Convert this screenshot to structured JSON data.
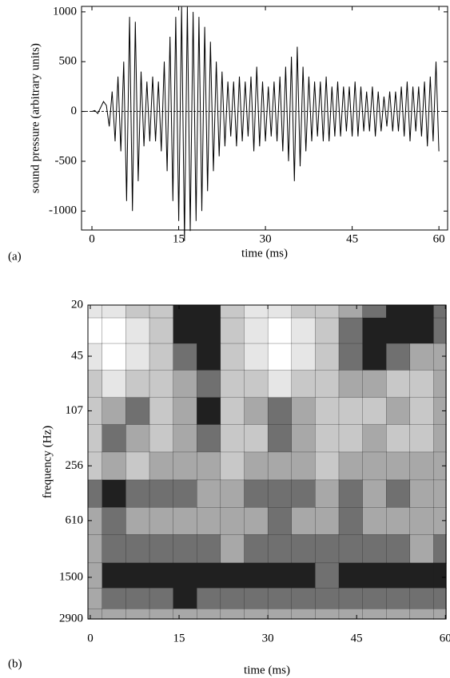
{
  "chart_data": [
    {
      "type": "line",
      "panel_label": "(a)",
      "xlabel": "time (ms)",
      "ylabel": "sound pressure (arbitrary units)",
      "color": "#000000",
      "zero_line": true,
      "xlim": [
        -1.8,
        61.5
      ],
      "xticks": [
        0,
        15,
        30,
        45,
        60
      ],
      "ylim": [
        -1190,
        1055
      ],
      "yticks": [
        -1000,
        -500,
        0,
        500,
        1000
      ],
      "x": [
        0,
        0.5,
        1,
        1.5,
        2,
        2.5,
        3,
        3.5,
        4,
        4.5,
        5,
        5.5,
        6,
        6.5,
        7,
        7.5,
        8,
        8.5,
        9,
        9.5,
        10,
        10.5,
        11,
        11.5,
        12,
        12.5,
        13,
        13.5,
        14,
        14.5,
        15,
        15.5,
        16,
        16.5,
        17,
        17.5,
        18,
        18.5,
        19,
        19.5,
        20,
        20.5,
        21,
        21.5,
        22,
        22.5,
        23,
        23.5,
        24,
        24.5,
        25,
        25.5,
        26,
        26.5,
        27,
        27.5,
        28,
        28.5,
        29,
        29.5,
        30,
        30.5,
        31,
        31.5,
        32,
        32.5,
        33,
        33.5,
        34,
        34.5,
        35,
        35.5,
        36,
        36.5,
        37,
        37.5,
        38,
        38.5,
        39,
        39.5,
        40,
        40.5,
        41,
        41.5,
        42,
        42.5,
        43,
        43.5,
        44,
        44.5,
        45,
        45.5,
        46,
        46.5,
        47,
        47.5,
        48,
        48.5,
        49,
        49.5,
        50,
        50.5,
        51,
        51.5,
        52,
        52.5,
        53,
        53.5,
        54,
        54.5,
        55,
        55.5,
        56,
        56.5,
        57,
        57.5,
        58,
        58.5,
        59,
        59.5,
        60
      ],
      "values": [
        0,
        10,
        -20,
        40,
        100,
        60,
        -150,
        200,
        -300,
        350,
        -400,
        500,
        -900,
        950,
        -1000,
        900,
        -700,
        400,
        -350,
        300,
        -300,
        350,
        -300,
        300,
        -400,
        500,
        -600,
        750,
        -900,
        950,
        -1100,
        1050,
        -1300,
        1050,
        -1200,
        1000,
        -1100,
        950,
        -1000,
        850,
        -800,
        700,
        -600,
        500,
        -450,
        400,
        -350,
        300,
        -250,
        300,
        -350,
        350,
        -300,
        300,
        -250,
        350,
        -400,
        450,
        -350,
        300,
        -300,
        250,
        -250,
        300,
        -300,
        350,
        -400,
        450,
        -500,
        550,
        -700,
        650,
        -550,
        450,
        -400,
        350,
        -300,
        300,
        -250,
        300,
        -300,
        350,
        -300,
        250,
        -250,
        300,
        -250,
        250,
        -200,
        250,
        -250,
        300,
        -250,
        250,
        -200,
        200,
        -200,
        250,
        -250,
        200,
        -200,
        150,
        -150,
        200,
        -200,
        200,
        -200,
        250,
        -250,
        300,
        -300,
        250,
        -200,
        250,
        -250,
        300,
        -350,
        350,
        -300,
        500,
        -400
      ]
    },
    {
      "type": "contour",
      "panel_label": "(b)",
      "xlabel": "time (ms)",
      "ylabel": "frequency (Hz)",
      "log_y": true,
      "y_inverted": true,
      "xlim": [
        -0.4,
        60.1
      ],
      "xticks": [
        0,
        15,
        30,
        45,
        60
      ],
      "ylim": [
        20,
        2900
      ],
      "yticks": [
        20,
        45,
        107,
        256,
        610,
        1500,
        2900
      ],
      "level_colors": [
        "#ffffff",
        "#e6e6e6",
        "#c8c8c8",
        "#a8a8a8",
        "#707070",
        "#202020"
      ],
      "x": [
        0,
        4,
        8,
        12,
        16,
        20,
        24,
        28,
        32,
        36,
        40,
        44,
        48,
        52,
        56,
        60
      ],
      "y": [
        20,
        30,
        45,
        70,
        107,
        165,
        256,
        400,
        610,
        950,
        1500,
        2100,
        2900
      ],
      "z": [
        [
          1,
          1,
          2,
          2,
          5,
          5,
          2,
          1,
          1,
          2,
          2,
          3,
          4,
          5,
          5,
          4
        ],
        [
          0,
          0,
          1,
          2,
          5,
          5,
          2,
          1,
          0,
          1,
          2,
          4,
          5,
          5,
          5,
          4
        ],
        [
          1,
          0,
          1,
          2,
          4,
          5,
          2,
          1,
          0,
          1,
          2,
          4,
          5,
          4,
          3,
          3
        ],
        [
          2,
          1,
          2,
          2,
          3,
          4,
          2,
          2,
          1,
          2,
          2,
          3,
          3,
          2,
          2,
          3
        ],
        [
          2,
          3,
          4,
          2,
          3,
          5,
          2,
          3,
          4,
          3,
          2,
          2,
          2,
          3,
          2,
          3
        ],
        [
          2,
          4,
          3,
          2,
          3,
          4,
          2,
          2,
          4,
          3,
          2,
          2,
          3,
          2,
          2,
          3
        ],
        [
          2,
          3,
          2,
          3,
          3,
          3,
          2,
          3,
          3,
          3,
          2,
          3,
          3,
          3,
          3,
          3
        ],
        [
          4,
          5,
          4,
          4,
          4,
          3,
          3,
          4,
          4,
          4,
          3,
          4,
          3,
          4,
          3,
          3
        ],
        [
          3,
          4,
          3,
          3,
          3,
          3,
          3,
          3,
          4,
          3,
          3,
          4,
          3,
          3,
          3,
          3
        ],
        [
          3,
          4,
          4,
          4,
          4,
          4,
          3,
          4,
          4,
          4,
          4,
          4,
          4,
          4,
          3,
          4
        ],
        [
          3,
          5,
          5,
          5,
          5,
          5,
          5,
          5,
          5,
          5,
          4,
          5,
          5,
          5,
          5,
          5
        ],
        [
          3,
          4,
          4,
          4,
          5,
          4,
          4,
          4,
          4,
          4,
          4,
          4,
          4,
          4,
          4,
          4
        ],
        [
          3,
          3,
          3,
          3,
          3,
          3,
          3,
          3,
          3,
          3,
          3,
          3,
          3,
          3,
          3,
          3
        ]
      ]
    }
  ]
}
